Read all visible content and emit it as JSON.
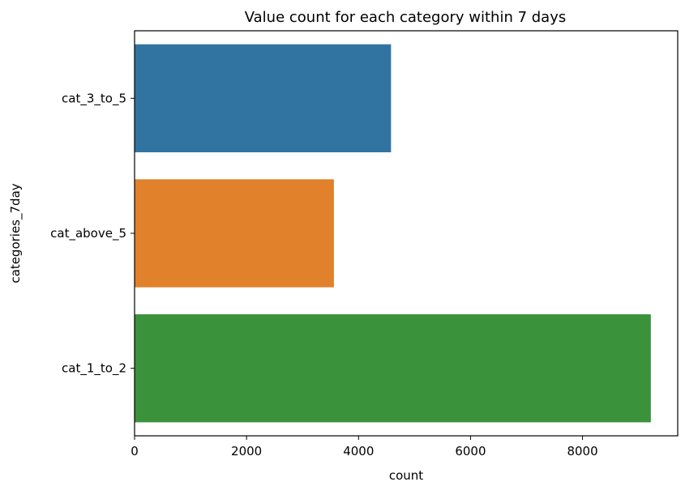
{
  "chart_data": {
    "type": "bar",
    "orientation": "horizontal",
    "title": "Value count for each category within 7 days",
    "xlabel": "count",
    "ylabel": "categories_7day",
    "categories": [
      "cat_3_to_5",
      "cat_above_5",
      "cat_1_to_2"
    ],
    "values": [
      4580,
      3560,
      9220
    ],
    "colors": [
      "#3274a1",
      "#e1812c",
      "#3a923a"
    ],
    "xlim": [
      0,
      9700
    ],
    "xticks": [
      0,
      2000,
      4000,
      6000,
      8000
    ],
    "grid": false,
    "legend": false
  }
}
